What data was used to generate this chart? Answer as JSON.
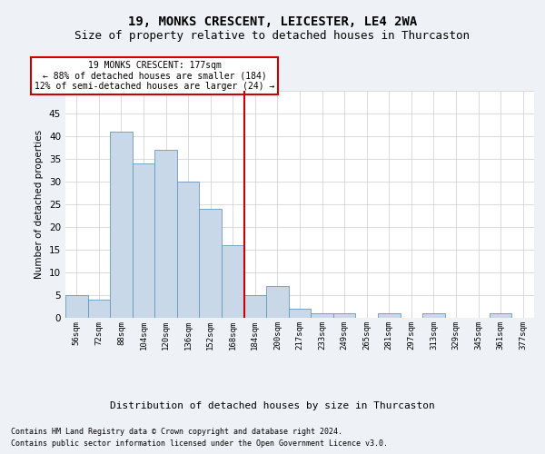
{
  "title": "19, MONKS CRESCENT, LEICESTER, LE4 2WA",
  "subtitle": "Size of property relative to detached houses in Thurcaston",
  "xlabel": "Distribution of detached houses by size in Thurcaston",
  "ylabel": "Number of detached properties",
  "footer_line1": "Contains HM Land Registry data © Crown copyright and database right 2024.",
  "footer_line2": "Contains public sector information licensed under the Open Government Licence v3.0.",
  "annotation_line1": "19 MONKS CRESCENT: 177sqm",
  "annotation_line2": "← 88% of detached houses are smaller (184)",
  "annotation_line3": "12% of semi-detached houses are larger (24) →",
  "bar_labels": [
    "56sqm",
    "72sqm",
    "88sqm",
    "104sqm",
    "120sqm",
    "136sqm",
    "152sqm",
    "168sqm",
    "184sqm",
    "200sqm",
    "217sqm",
    "233sqm",
    "249sqm",
    "265sqm",
    "281sqm",
    "297sqm",
    "313sqm",
    "329sqm",
    "345sqm",
    "361sqm",
    "377sqm"
  ],
  "bar_values": [
    5,
    4,
    41,
    34,
    37,
    30,
    24,
    16,
    5,
    7,
    2,
    1,
    1,
    0,
    1,
    0,
    1,
    0,
    0,
    1,
    0
  ],
  "bar_color": "#c8d8e8",
  "bar_edge_color": "#6699bb",
  "vline_color": "#cc0000",
  "ylim": [
    0,
    50
  ],
  "yticks": [
    0,
    5,
    10,
    15,
    20,
    25,
    30,
    35,
    40,
    45,
    50
  ],
  "bg_color": "#eef2f7",
  "plot_bg_color": "#ffffff",
  "grid_color": "#cccccc",
  "annotation_box_edge": "#cc0000",
  "title_fontsize": 10,
  "subtitle_fontsize": 9
}
